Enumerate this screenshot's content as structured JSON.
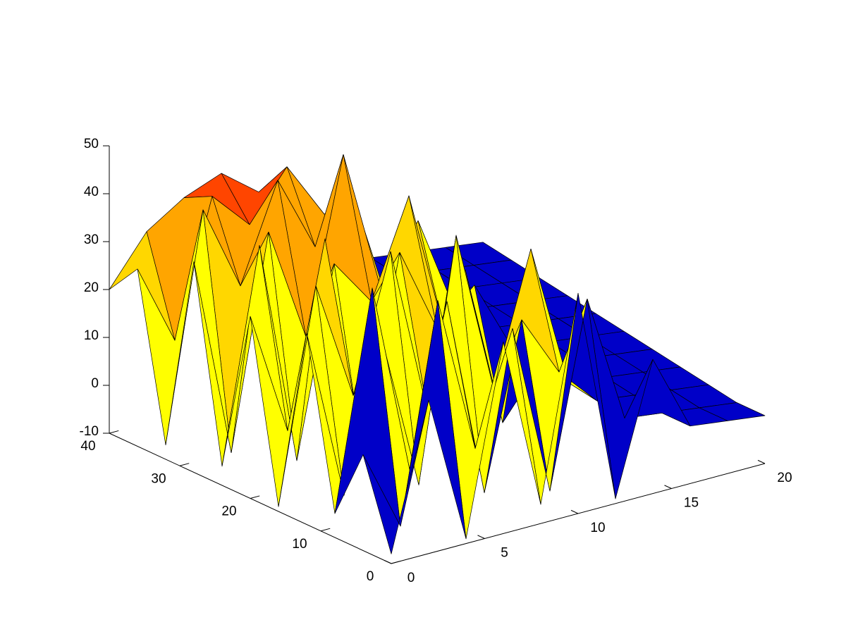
{
  "chart_data": {
    "type": "surface",
    "x": [
      0,
      2,
      4,
      6,
      8,
      10,
      12,
      14,
      16,
      18,
      20
    ],
    "y": [
      0,
      4,
      8,
      12,
      16,
      20,
      24,
      28,
      32,
      36,
      40
    ],
    "z": [
      [
        -8,
        22,
        -9,
        30,
        -6,
        36,
        -9,
        18,
        2,
        1,
        0
      ],
      [
        10,
        -7,
        38,
        5,
        28,
        -8,
        30,
        3,
        2,
        1,
        0
      ],
      [
        -5,
        40,
        0,
        33,
        -9,
        25,
        12,
        4,
        3,
        2,
        1
      ],
      [
        30,
        -6,
        25,
        -8,
        42,
        8,
        35,
        5,
        4,
        3,
        2
      ],
      [
        -9,
        35,
        10,
        38,
        2,
        30,
        -4,
        6,
        5,
        4,
        3
      ],
      [
        28,
        2,
        40,
        -7,
        33,
        15,
        22,
        7,
        6,
        5,
        4
      ],
      [
        -6,
        38,
        -9,
        30,
        20,
        40,
        8,
        8,
        7,
        6,
        5
      ],
      [
        34,
        -8,
        36,
        12,
        48,
        18,
        30,
        9,
        8,
        7,
        6
      ],
      [
        -7,
        40,
        22,
        42,
        26,
        35,
        9,
        10,
        9,
        8,
        7
      ],
      [
        27,
        10,
        38,
        30,
        40,
        28,
        12,
        11,
        10,
        9,
        8
      ],
      [
        20,
        30,
        35,
        38,
        32,
        30,
        13,
        12,
        11,
        10,
        9
      ]
    ],
    "xlim": [
      0,
      20
    ],
    "xticks": [
      0,
      5,
      10,
      15,
      20
    ],
    "ylim": [
      0,
      40
    ],
    "yticks": [
      0,
      10,
      20,
      30,
      40
    ],
    "zlim": [
      -10,
      50
    ],
    "zticks": [
      -10,
      0,
      10,
      20,
      30,
      40,
      50
    ],
    "colormap": [
      "#0000c8",
      "#0000c8",
      "#0000c8",
      "#ffff00",
      "#ffd700",
      "#ffa500",
      "#ff4500",
      "#ff0000"
    ],
    "edge_color": "#000000"
  }
}
